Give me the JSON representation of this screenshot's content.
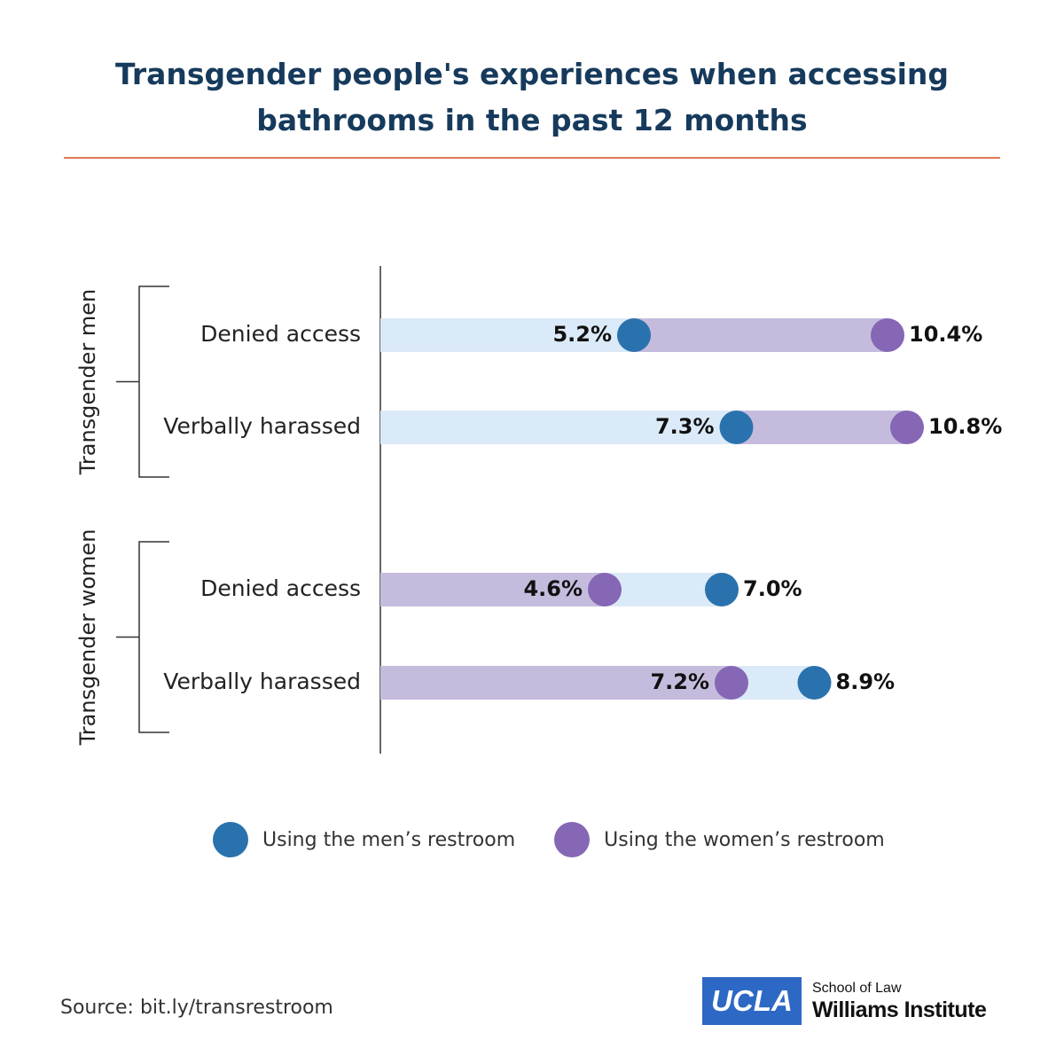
{
  "colors": {
    "mens": "#2a72ad",
    "womens": "#8567b5",
    "mens_bar": "#dbeaf8",
    "womens_bar": "#c5bcdd",
    "title": "#163a5c",
    "rule": "#e07a55",
    "axis": "#333333"
  },
  "chart_data": {
    "type": "dumbbell",
    "title": "Transgender people's experiences when accessing bathrooms in the past 12 months",
    "title_lines": [
      "Transgender people's experiences when accessing",
      "bathrooms in the past 12 months"
    ],
    "unit": "%",
    "xlim": [
      0,
      12
    ],
    "groups": [
      {
        "name": "Transgender men",
        "rows": [
          {
            "label": "Denied access",
            "mens": 5.2,
            "womens": 10.4,
            "mens_label": "5.2%",
            "womens_label": "10.4%"
          },
          {
            "label": "Verbally harassed",
            "mens": 7.3,
            "womens": 10.8,
            "mens_label": "7.3%",
            "womens_label": "10.8%"
          }
        ]
      },
      {
        "name": "Transgender women",
        "rows": [
          {
            "label": "Denied access",
            "mens": 7.0,
            "womens": 4.6,
            "mens_label": "7.0%",
            "womens_label": "4.6%"
          },
          {
            "label": "Verbally harassed",
            "mens": 8.9,
            "womens": 7.2,
            "mens_label": "8.9%",
            "womens_label": "7.2%"
          }
        ]
      }
    ],
    "legend": [
      {
        "key": "mens",
        "label": "Using the men’s restroom"
      },
      {
        "key": "womens",
        "label": "Using the women’s restroom"
      }
    ]
  },
  "footer": {
    "source": "Source: bit.ly/transrestroom",
    "logo_ucla": "UCLA",
    "logo_school": "School of Law",
    "logo_institute": "Williams Institute"
  }
}
